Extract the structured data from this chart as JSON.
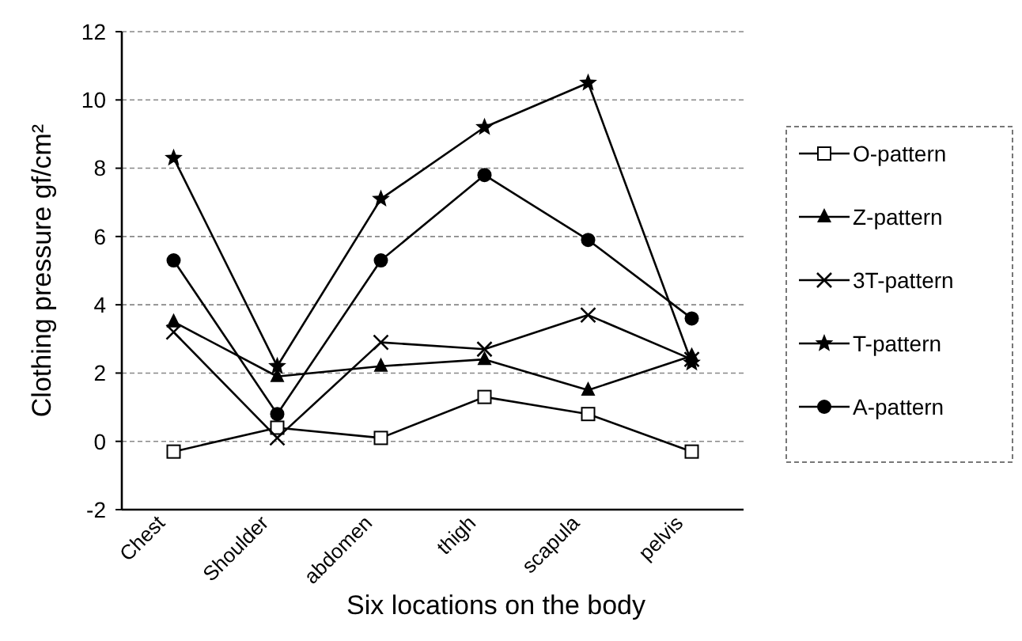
{
  "chart_data": {
    "type": "line",
    "xlabel": "Six locations on the body",
    "ylabel": "Clothing pressure gf/cm²",
    "categories": [
      "Chest",
      "Shoulder",
      "abdomen",
      "thigh",
      "scapula",
      "pelvis"
    ],
    "ylim": [
      -2,
      12
    ],
    "yticks": [
      -2,
      0,
      2,
      4,
      6,
      8,
      10,
      12
    ],
    "grid": "y",
    "legend": "right",
    "line_style": "solid",
    "series": [
      {
        "name": "O-pattern",
        "color": "#000000",
        "marker": "square",
        "values": [
          -0.3,
          0.4,
          0.1,
          1.3,
          0.8,
          -0.3
        ]
      },
      {
        "name": "Z-pattern",
        "color": "#000000",
        "marker": "triangle",
        "values": [
          3.5,
          1.9,
          2.2,
          2.4,
          1.5,
          2.5
        ]
      },
      {
        "name": "3T-pattern",
        "color": "#000000",
        "marker": "cross",
        "values": [
          3.2,
          0.1,
          2.9,
          2.7,
          3.7,
          2.4
        ]
      },
      {
        "name": "T-pattern",
        "color": "#000000",
        "marker": "star",
        "values": [
          8.3,
          2.2,
          7.1,
          9.2,
          10.5,
          2.3
        ]
      },
      {
        "name": "A-pattern",
        "color": "#000000",
        "marker": "circle",
        "values": [
          5.3,
          0.8,
          5.3,
          7.8,
          5.9,
          3.6
        ]
      }
    ]
  }
}
